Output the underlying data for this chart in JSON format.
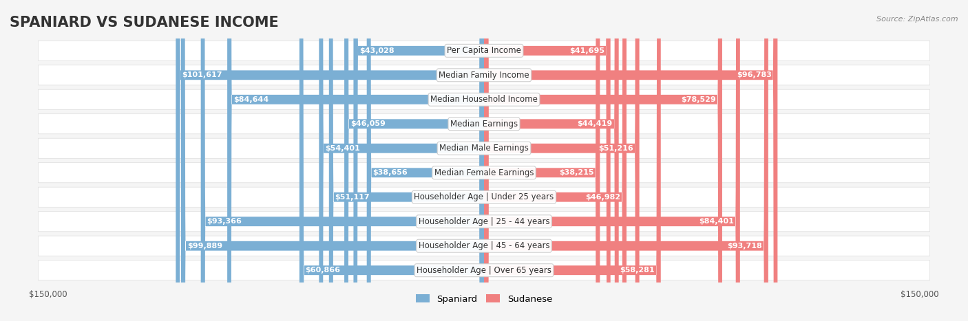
{
  "title": "SPANIARD VS SUDANESE INCOME",
  "source": "Source: ZipAtlas.com",
  "categories": [
    "Per Capita Income",
    "Median Family Income",
    "Median Household Income",
    "Median Earnings",
    "Median Male Earnings",
    "Median Female Earnings",
    "Householder Age | Under 25 years",
    "Householder Age | 25 - 44 years",
    "Householder Age | 45 - 64 years",
    "Householder Age | Over 65 years"
  ],
  "spaniard_values": [
    43028,
    101617,
    84644,
    46059,
    54401,
    38656,
    51117,
    93366,
    99889,
    60866
  ],
  "sudanese_values": [
    41695,
    96783,
    78529,
    44419,
    51216,
    38215,
    46982,
    84401,
    93718,
    58281
  ],
  "spaniard_labels": [
    "$43,028",
    "$101,617",
    "$84,644",
    "$46,059",
    "$54,401",
    "$38,656",
    "$51,117",
    "$93,366",
    "$99,889",
    "$60,866"
  ],
  "sudanese_labels": [
    "$41,695",
    "$96,783",
    "$78,529",
    "$44,419",
    "$51,216",
    "$38,215",
    "$46,982",
    "$84,401",
    "$93,718",
    "$58,281"
  ],
  "spaniard_color": "#7bafd4",
  "sudanese_color": "#f08080",
  "spaniard_color_dark": "#5b8fbf",
  "sudanese_color_dark": "#e05c7a",
  "max_value": 150000,
  "background_color": "#f5f5f5",
  "row_bg_color": "#ffffff",
  "row_border_color": "#dddddd",
  "title_fontsize": 15,
  "label_fontsize": 8.5,
  "value_fontsize": 8,
  "legend_spaniard": "Spaniard",
  "legend_sudanese": "Sudanese"
}
